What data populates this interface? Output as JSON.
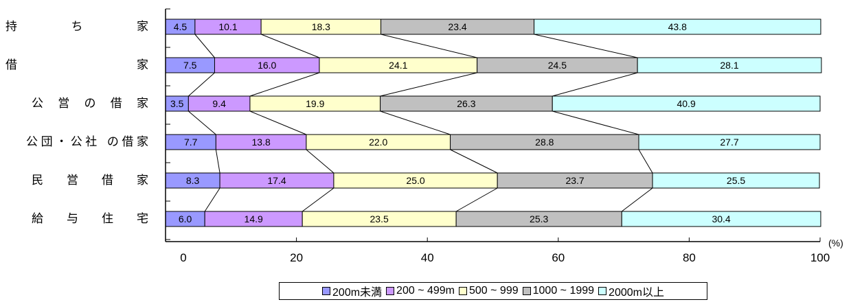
{
  "chart_data": {
    "type": "bar",
    "stacked": true,
    "orientation": "horizontal",
    "categories": [
      "持　　　ち　　　家",
      "借　　　　　　　家",
      "公 営 の 借 家",
      "公団・公社 の借家",
      "民　営　借　家",
      "給　与　住　宅"
    ],
    "series": [
      {
        "name": "200m未満",
        "color": "#9999ff",
        "values": [
          4.5,
          7.5,
          3.5,
          7.7,
          8.3,
          6.0
        ]
      },
      {
        "name": "200 ~ 499m",
        "color": "#cc99ff",
        "values": [
          10.1,
          16.0,
          9.4,
          13.8,
          17.4,
          14.9
        ]
      },
      {
        "name": "500 ~ 999",
        "color": "#ffffcc",
        "values": [
          18.3,
          24.1,
          19.9,
          22.0,
          25.0,
          23.5
        ]
      },
      {
        "name": "1000 ~ 1999",
        "color": "#c0c0c0",
        "values": [
          23.4,
          24.5,
          26.3,
          28.8,
          23.7,
          25.3
        ]
      },
      {
        "name": "2000m以上",
        "color": "#ccffff",
        "values": [
          43.8,
          28.1,
          40.9,
          27.7,
          25.5,
          30.4
        ]
      }
    ],
    "data_labels": [
      [
        "4.5",
        "10.1",
        "18.3",
        "23.4",
        "43.8"
      ],
      [
        "7.5",
        "16.0",
        "24.1",
        "24.5",
        "28.1"
      ],
      [
        "3.5",
        "9.4",
        "19.9",
        "26.3",
        "40.9"
      ],
      [
        "7.7",
        "13.8",
        "22.0",
        "28.8",
        "27.7"
      ],
      [
        "8.3",
        "17.4",
        "25.0",
        "23.7",
        "25.5"
      ],
      [
        "6.0",
        "14.9",
        "23.5",
        "25.3",
        "30.4"
      ]
    ],
    "xlim": [
      0,
      100
    ],
    "xticks": [
      "0",
      "20",
      "40",
      "60",
      "80",
      "100"
    ],
    "x_unit": "(%)",
    "connector_lines": true,
    "legend_position": "bottom"
  }
}
